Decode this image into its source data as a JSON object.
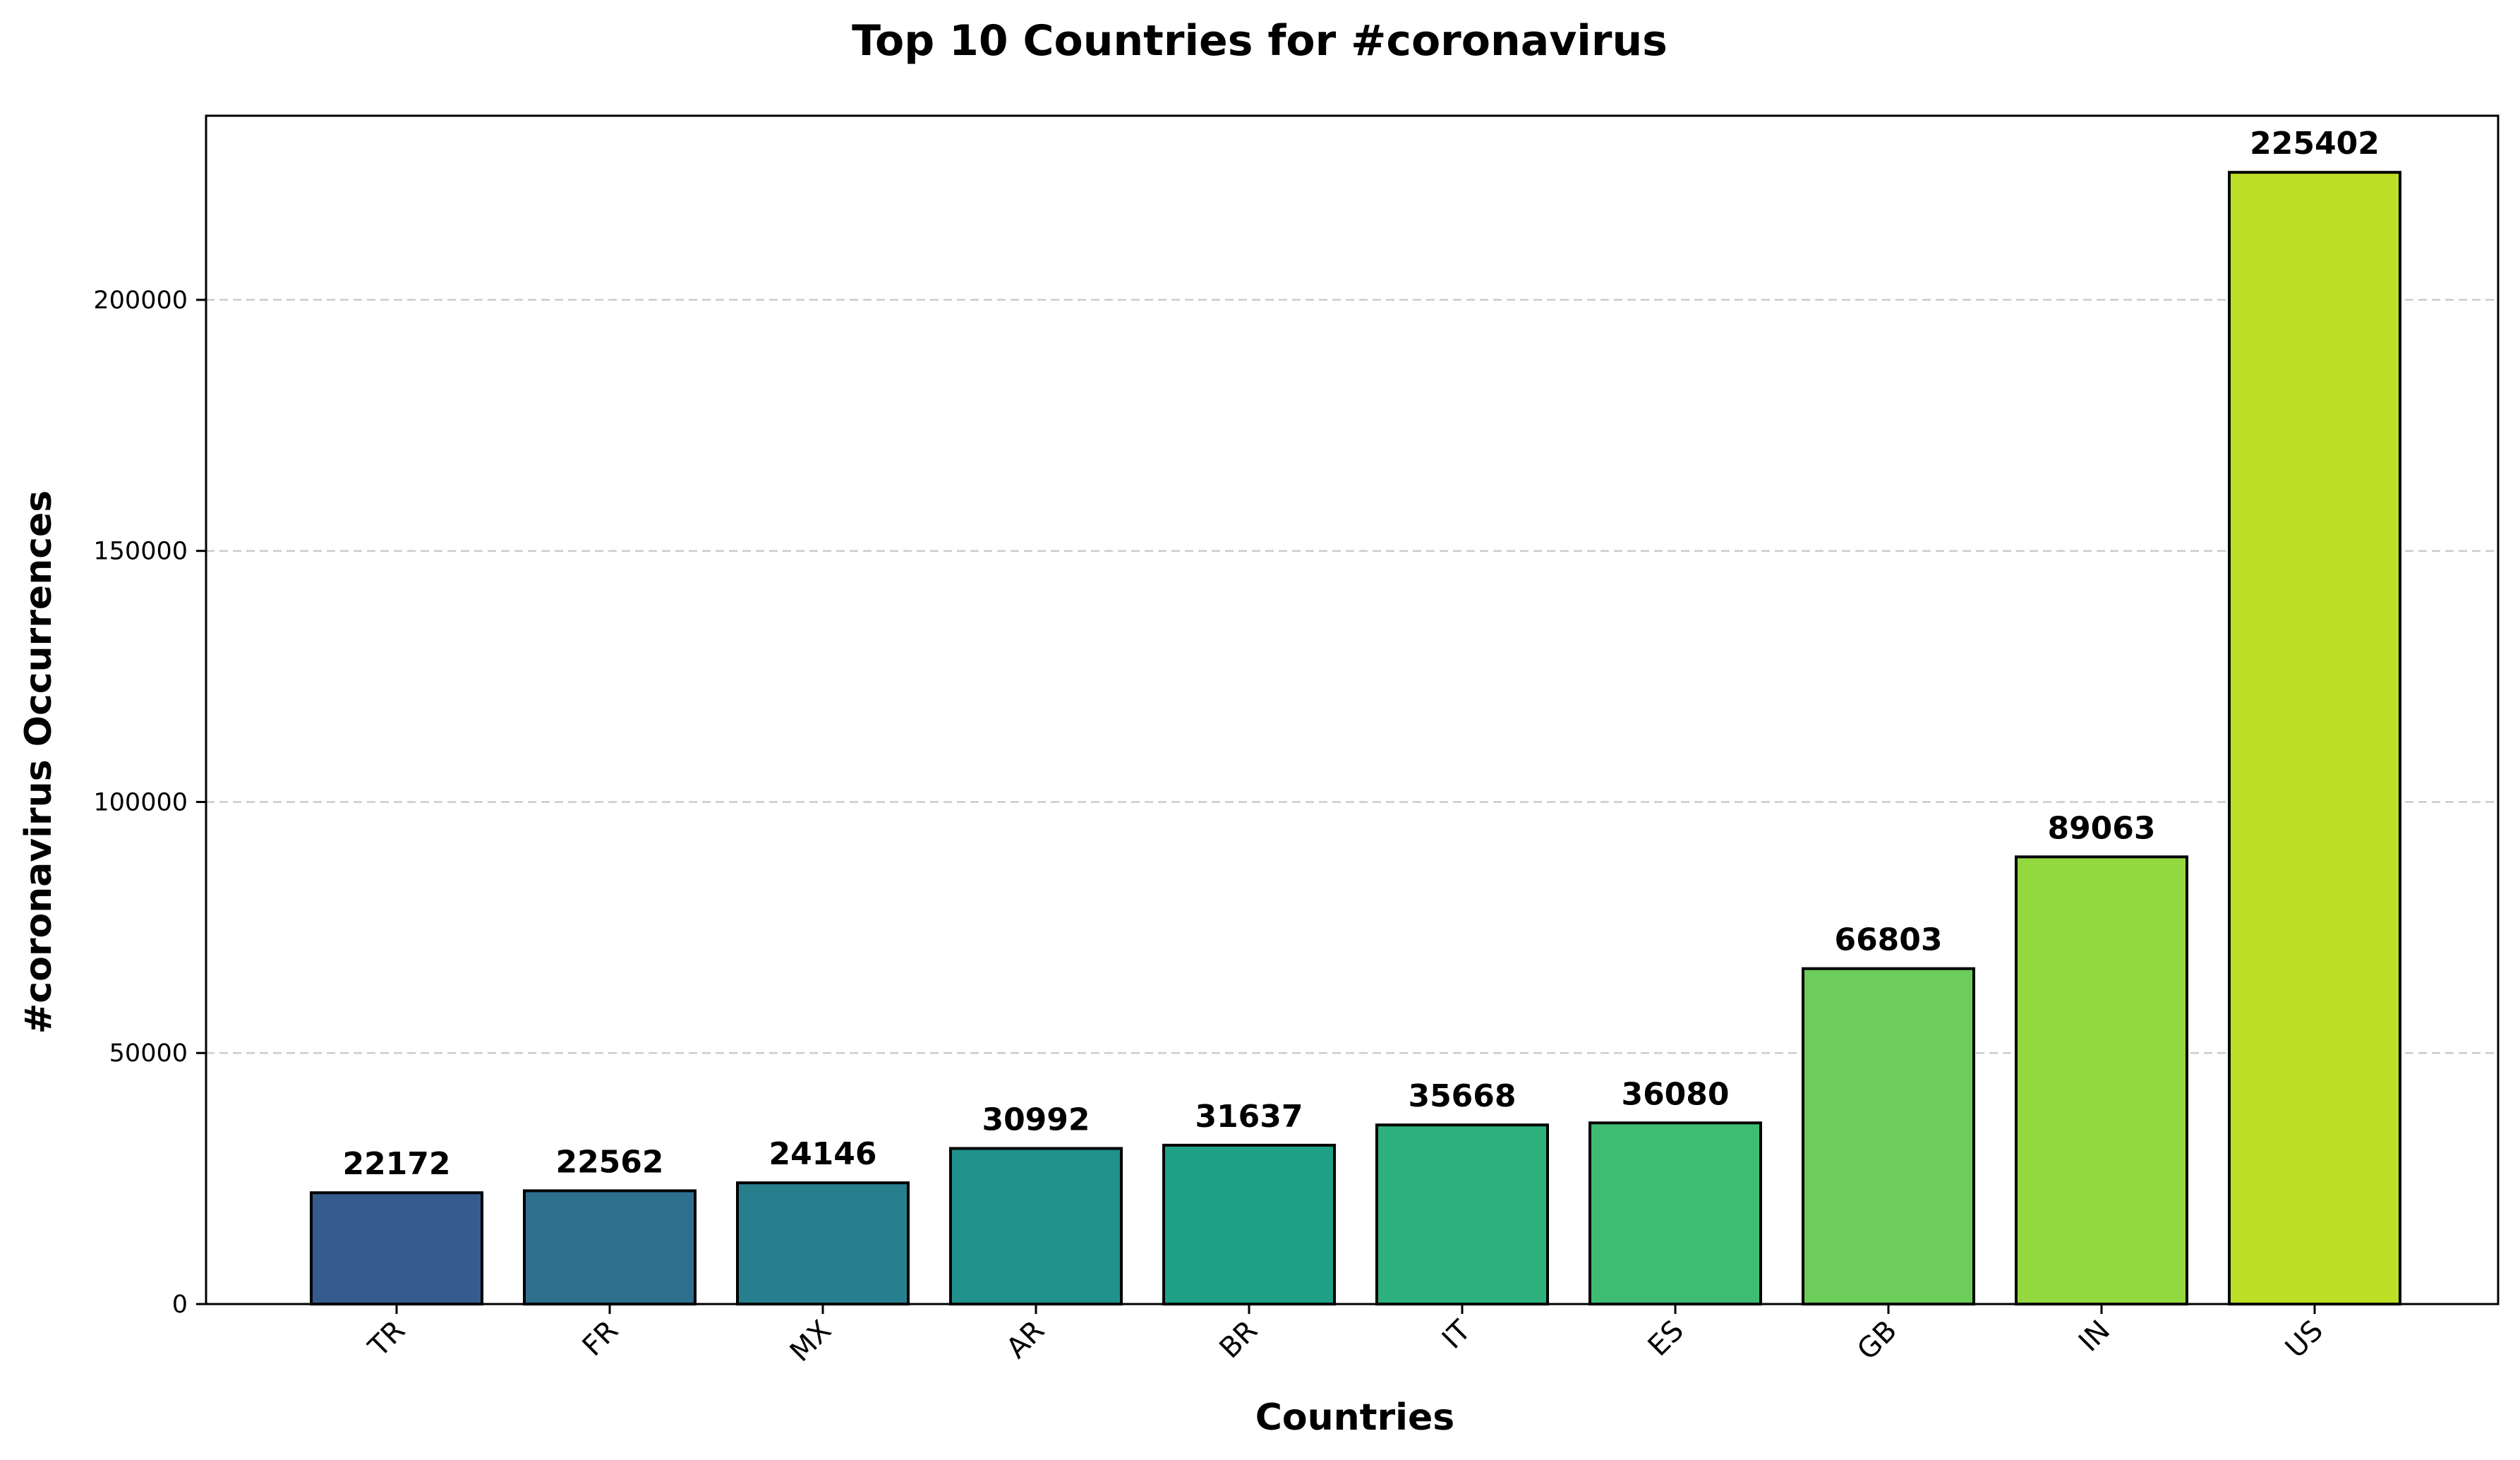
{
  "chart_data": {
    "type": "bar",
    "title": "Top 10 Countries for #coronavirus",
    "xlabel": "Countries",
    "ylabel": "#coronavirus Occurrences",
    "categories": [
      "TR",
      "FR",
      "MX",
      "AR",
      "BR",
      "IT",
      "ES",
      "GB",
      "IN",
      "US"
    ],
    "values": [
      22172,
      22562,
      24146,
      30992,
      31637,
      35668,
      36080,
      66803,
      89063,
      225402
    ],
    "data_labels": [
      "22172",
      "22562",
      "24146",
      "30992",
      "31637",
      "35668",
      "36080",
      "66803",
      "89063",
      "225402"
    ],
    "yticks": [
      0,
      50000,
      100000,
      150000,
      200000
    ],
    "ytick_labels": [
      "0",
      "50000",
      "100000",
      "150000",
      "200000"
    ],
    "ylim": [
      0,
      236672
    ],
    "grid": "y-dashed",
    "colors": [
      "#365c8d",
      "#2e6f8e",
      "#277f8e",
      "#21918c",
      "#1fa187",
      "#2db27d",
      "#3fbc73",
      "#6ccd5a",
      "#94d840",
      "#bddf26"
    ],
    "edge_color": "#000000",
    "grid_color": "#cccccc"
  }
}
